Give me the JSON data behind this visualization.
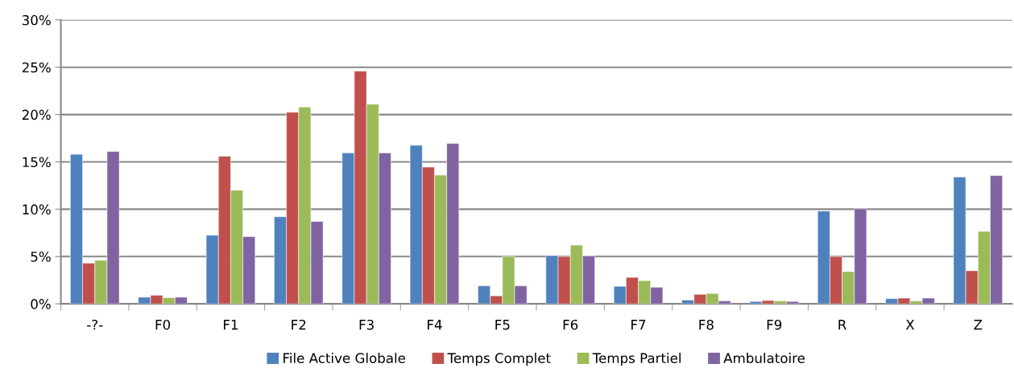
{
  "chart_data": {
    "type": "bar",
    "categories": [
      "-?-",
      "F0",
      "F1",
      "F2",
      "F3",
      "F4",
      "F5",
      "F6",
      "F7",
      "F8",
      "F9",
      "R",
      "X",
      "Z"
    ],
    "series": [
      {
        "name": "File Active Globale",
        "color": "#4f81bd",
        "values": [
          15.8,
          0.7,
          7.25,
          9.2,
          15.95,
          16.75,
          1.9,
          5.1,
          1.85,
          0.4,
          0.25,
          9.8,
          0.55,
          13.4
        ]
      },
      {
        "name": "Temps Complet",
        "color": "#c0504d",
        "values": [
          4.3,
          0.9,
          15.6,
          20.25,
          24.6,
          14.45,
          0.85,
          5.0,
          2.8,
          1.0,
          0.35,
          5.0,
          0.6,
          3.5
        ]
      },
      {
        "name": "Temps Partiel",
        "color": "#9bbb59",
        "values": [
          4.6,
          0.65,
          12.0,
          20.8,
          21.1,
          13.6,
          5.0,
          6.2,
          2.45,
          1.1,
          0.3,
          3.4,
          0.3,
          7.65
        ]
      },
      {
        "name": "Ambulatoire",
        "color": "#8064a2",
        "values": [
          16.1,
          0.7,
          7.1,
          8.7,
          15.95,
          16.95,
          1.9,
          5.05,
          1.75,
          0.3,
          0.25,
          10.05,
          0.6,
          13.55
        ]
      }
    ],
    "ylim": [
      0,
      30
    ],
    "yticks": [
      {
        "value": 0,
        "label": "0%"
      },
      {
        "value": 5,
        "label": "5%"
      },
      {
        "value": 10,
        "label": "10%"
      },
      {
        "value": 15,
        "label": "15%"
      },
      {
        "value": 20,
        "label": "20%"
      },
      {
        "value": 25,
        "label": "25%"
      },
      {
        "value": 30,
        "label": "30%"
      }
    ],
    "grid": "y",
    "legend": "bottom"
  }
}
